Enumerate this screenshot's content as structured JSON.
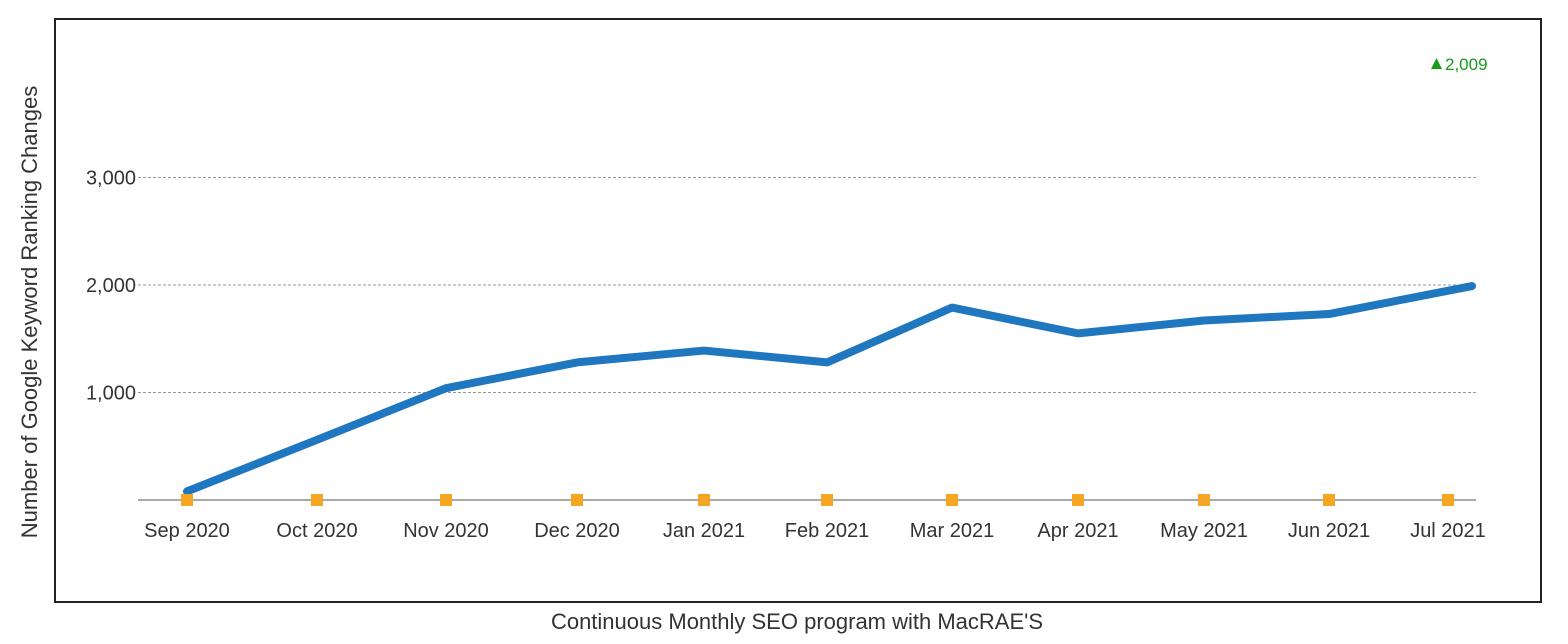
{
  "chart_data": {
    "type": "line",
    "title": "",
    "xlabel": "Continuous Monthly SEO program with MacRAE'S",
    "ylabel": "Number of Google Keyword Ranking Changes",
    "categories": [
      "Sep 2020",
      "Oct 2020",
      "Nov 2020",
      "Dec 2020",
      "Jan 2021",
      "Feb 2021",
      "Mar 2021",
      "Apr 2021",
      "May 2021",
      "Jun 2021",
      "Jul 2021"
    ],
    "series": [
      {
        "values": [
          80,
          560,
          1040,
          1280,
          1390,
          1280,
          1790,
          1550,
          1670,
          1730,
          1990
        ]
      }
    ],
    "marker_values": [
      0,
      0,
      0,
      0,
      0,
      0,
      0,
      0,
      0,
      0,
      0
    ],
    "yticks": [
      1000,
      2000,
      3000
    ],
    "ytick_labels": [
      "1,000",
      "2,000",
      "3,000"
    ],
    "ylim": [
      0,
      4400
    ],
    "grid": true,
    "badge": {
      "text": "2,009",
      "color": "#1a9a1a",
      "icon": "triangle-up-icon"
    },
    "colors": {
      "line": "#1f77bf",
      "marker": "#f5a623",
      "grid": "#999999",
      "frame": "#222222"
    }
  }
}
